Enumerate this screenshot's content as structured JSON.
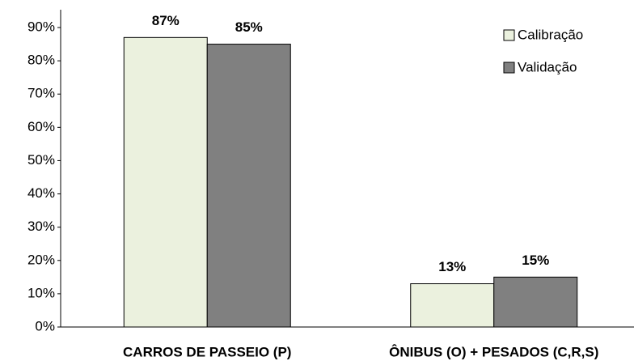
{
  "chart_data": {
    "type": "bar",
    "categories": [
      "CARROS DE PASSEIO (P)",
      "ÔNIBUS (O) + PESADOS (C,R,S)"
    ],
    "series": [
      {
        "name": "Calibração",
        "color": "#ebf1de",
        "values": [
          87,
          13
        ],
        "value_labels": [
          "87%",
          "13%"
        ]
      },
      {
        "name": "Validação",
        "color": "#808080",
        "values": [
          85,
          15
        ],
        "value_labels": [
          "85%",
          "15%"
        ]
      }
    ],
    "ylim": [
      0,
      90
    ],
    "yticks": [
      {
        "value": 0,
        "label": "0%"
      },
      {
        "value": 10,
        "label": "10%"
      },
      {
        "value": 20,
        "label": "20%"
      },
      {
        "value": 30,
        "label": "30%"
      },
      {
        "value": 40,
        "label": "40%"
      },
      {
        "value": 50,
        "label": "50%"
      },
      {
        "value": 60,
        "label": "60%"
      },
      {
        "value": 70,
        "label": "70%"
      },
      {
        "value": 80,
        "label": "80%"
      },
      {
        "value": 90,
        "label": "90%"
      }
    ],
    "grid": false,
    "legend": "top-right"
  }
}
